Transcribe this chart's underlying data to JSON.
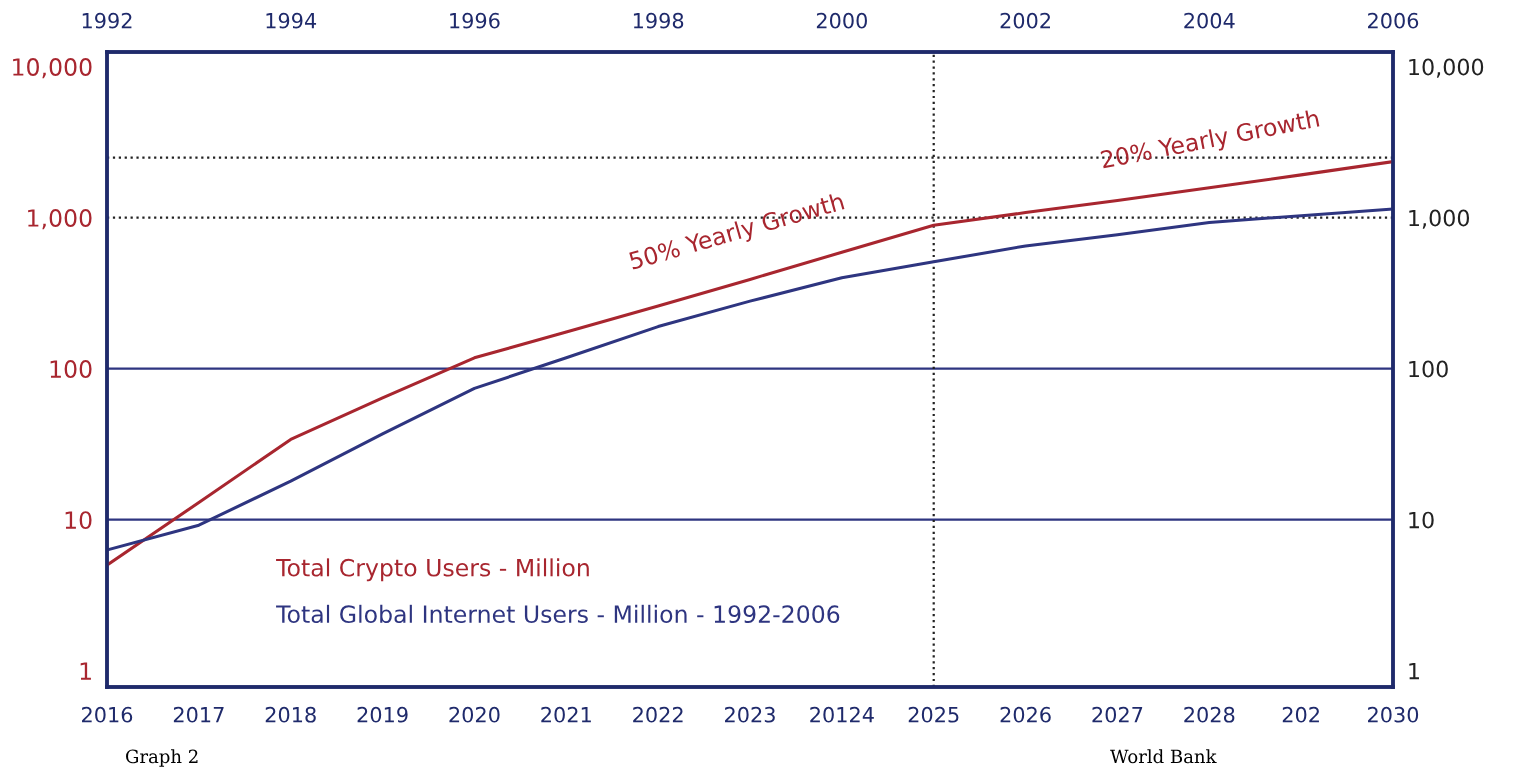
{
  "chart_data": {
    "type": "line",
    "annotations": [
      "50% Yearly Growth",
      "20% Yearly Growth",
      "Graph 2",
      "World Bank"
    ],
    "categories": [
      "2016",
      "2017",
      "2018",
      "2019",
      "2020",
      "2021",
      "2022",
      "2023",
      "20124",
      "2025",
      "2026",
      "2027",
      "2028",
      "202",
      "2030"
    ],
    "series": [
      {
        "name": "Total Crypto Users - Million",
        "color": "#a8262f",
        "values": [
          5,
          13,
          34,
          64,
          118,
          175,
          260,
          390,
          590,
          890,
          1080,
          1300,
          1580,
          1920,
          2350
        ]
      },
      {
        "name": "Total Global Internet Users - Million - 1992-2006",
        "color": "#2e3580",
        "values": [
          6.3,
          9.2,
          18,
          37,
          74,
          118,
          190,
          280,
          400,
          510,
          650,
          770,
          930,
          1030,
          1140
        ]
      }
    ],
    "log": true,
    "x2lim": [
      1992,
      2006
    ],
    "x2ticks": [
      1992,
      1994,
      1996,
      1998,
      2000,
      2002,
      2004,
      2006
    ],
    "ylim": [
      0.78,
      12500
    ],
    "yticks": [
      {
        "value": 1,
        "label": "1"
      },
      {
        "value": 10,
        "label": "10"
      },
      {
        "value": 100,
        "label": "100"
      },
      {
        "value": 1000,
        "label": "1,000"
      },
      {
        "value": 10000,
        "label": "10,000"
      }
    ],
    "ref_lines": [
      {
        "axis": "y",
        "value": 10,
        "color": "#2e3580",
        "line_style": "solid"
      },
      {
        "axis": "y",
        "value": 100,
        "color": "#2e3580",
        "line_style": "solid"
      },
      {
        "axis": "y",
        "value": 1000,
        "color": "#222222",
        "line_style": "dotted"
      },
      {
        "axis": "y",
        "value": 2500,
        "color": "#222222",
        "line_style": "dotted"
      },
      {
        "axis": "x",
        "value": "2025",
        "color": "#222222",
        "line_style": "dotted"
      }
    ],
    "grid": false,
    "legend": "bottom left",
    "marker": "none",
    "line_style": "solid"
  }
}
